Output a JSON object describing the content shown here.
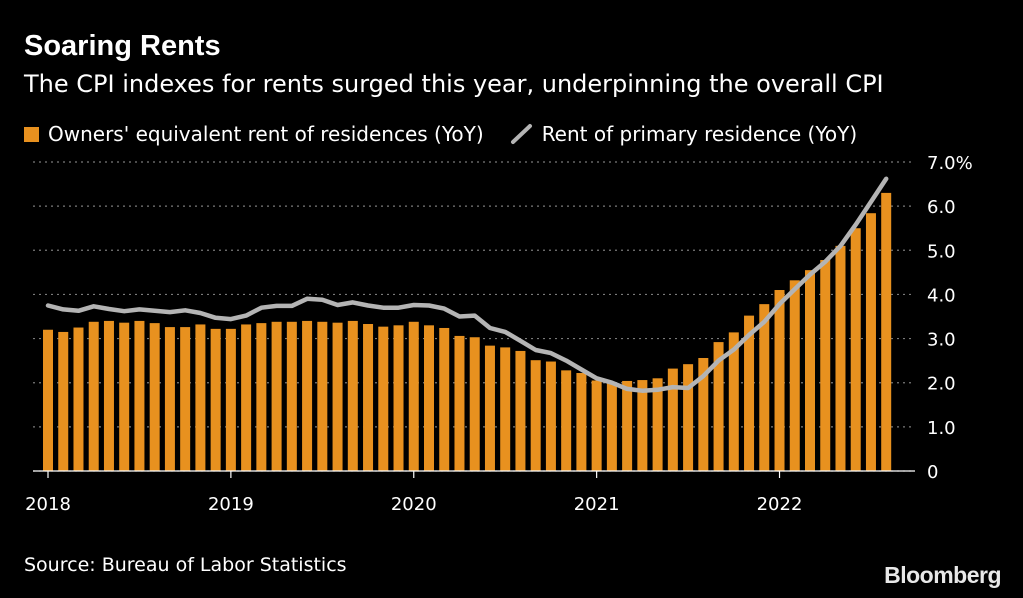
{
  "title": "Soaring Rents",
  "subtitle": "The CPI indexes for rents surged this year, underpinning the overall CPI",
  "source": "Source: Bureau of Labor Statistics",
  "brand": "Bloomberg",
  "colors": {
    "bar": "#e8911f",
    "line": "#b4b4b4",
    "grid": "#7a7a7a",
    "background": "#000000"
  },
  "chart_data": {
    "type": "bar",
    "series": [
      {
        "name": "Owners' equivalent rent of residences (YoY)",
        "type": "bar",
        "values": [
          3.2,
          3.15,
          3.25,
          3.38,
          3.4,
          3.36,
          3.4,
          3.35,
          3.26,
          3.26,
          3.32,
          3.22,
          3.22,
          3.32,
          3.35,
          3.38,
          3.38,
          3.4,
          3.38,
          3.36,
          3.4,
          3.33,
          3.27,
          3.3,
          3.38,
          3.3,
          3.24,
          3.06,
          3.03,
          2.84,
          2.8,
          2.72,
          2.51,
          2.48,
          2.28,
          2.22,
          2.05,
          2.0,
          2.04,
          2.06,
          2.1,
          2.32,
          2.42,
          2.56,
          2.92,
          3.14,
          3.52,
          3.78,
          4.1,
          4.32,
          4.55,
          4.78,
          5.1,
          5.5,
          5.84,
          6.3
        ]
      },
      {
        "name": "Rent of primary residence (YoY)",
        "type": "line",
        "values": [
          3.75,
          3.66,
          3.63,
          3.73,
          3.67,
          3.62,
          3.66,
          3.63,
          3.6,
          3.64,
          3.58,
          3.47,
          3.44,
          3.52,
          3.7,
          3.74,
          3.74,
          3.9,
          3.88,
          3.76,
          3.82,
          3.75,
          3.7,
          3.7,
          3.76,
          3.75,
          3.68,
          3.5,
          3.52,
          3.24,
          3.15,
          2.95,
          2.74,
          2.67,
          2.5,
          2.3,
          2.1,
          2.0,
          1.86,
          1.82,
          1.84,
          1.9,
          1.88,
          2.15,
          2.5,
          2.75,
          3.08,
          3.38,
          3.78,
          4.12,
          4.45,
          4.74,
          5.1,
          5.58,
          6.1,
          6.62
        ]
      }
    ],
    "x_ticks": [
      "2018",
      "2019",
      "2020",
      "2021",
      "2022"
    ],
    "y_ticks": [
      "0",
      "1.0",
      "2.0",
      "3.0",
      "4.0",
      "5.0",
      "6.0",
      "7.0%"
    ],
    "ylim": [
      0,
      7
    ],
    "grid": true,
    "legend": "top-left"
  }
}
